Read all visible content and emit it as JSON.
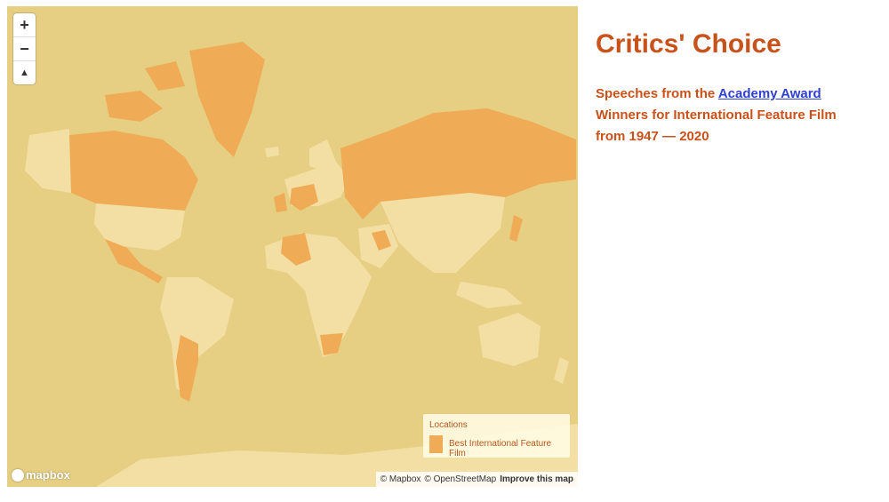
{
  "map": {
    "zoom_in_label": "+",
    "zoom_out_label": "−",
    "compass_label": "▲",
    "colors": {
      "ocean": "#e6cf82",
      "land": "#f3dfa4",
      "highlight": "#efab55"
    },
    "legend": {
      "title": "Locations",
      "item": "Best International Feature Film"
    },
    "attribution": {
      "mapbox": "© Mapbox",
      "osm": "© OpenStreetMap",
      "improve": "Improve this map"
    },
    "logo": "mapbox"
  },
  "sidebar": {
    "title": "Critics' Choice",
    "intro_before": "Speeches from the ",
    "link": "Academy Award",
    "intro_after": " Winners for International Feature Film from 1947 — 2020"
  }
}
